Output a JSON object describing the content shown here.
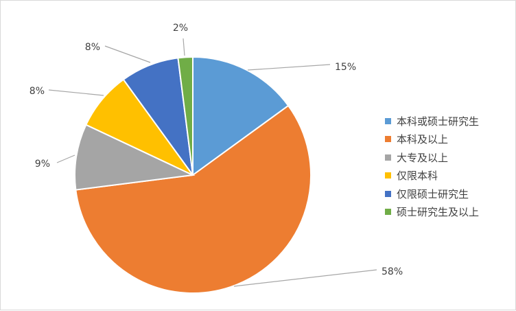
{
  "chart_data": {
    "type": "pie",
    "categories": [
      "本科或硕士研究生",
      "本科及以上",
      "大专及以上",
      "仅限本科",
      "仅限硕士研究生",
      "硕士研究生及以上"
    ],
    "values": [
      15,
      58,
      9,
      8,
      8,
      2
    ],
    "data_labels": [
      "15%",
      "58%",
      "9%",
      "8%",
      "8%",
      "2%"
    ],
    "colors": [
      "#5B9BD5",
      "#ED7D31",
      "#A5A5A5",
      "#FFC000",
      "#4472C4",
      "#70AD47"
    ],
    "start_angle": "12 o'clock",
    "direction": "clockwise",
    "legend_position": "right",
    "title": ""
  }
}
